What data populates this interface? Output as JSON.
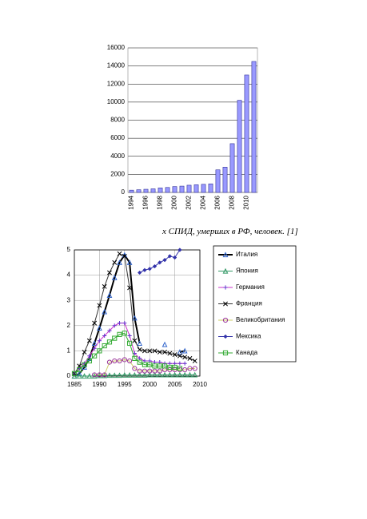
{
  "caption": "х СПИД, умерших в РФ, человек. [1]",
  "chart_data": [
    {
      "type": "bar",
      "categories": [
        "1994",
        null,
        "1996",
        null,
        "1998",
        null,
        "2000",
        null,
        "2002",
        null,
        "2004",
        null,
        "2006",
        null,
        "2008",
        null,
        "2010",
        null
      ],
      "values": [
        250,
        300,
        350,
        400,
        500,
        550,
        650,
        700,
        800,
        850,
        900,
        950,
        2500,
        2800,
        5400,
        10200,
        13000,
        14500
      ],
      "color": "#9999ff",
      "edge_color": "#333399",
      "ylim": [
        0,
        16000
      ],
      "yticks": [
        0,
        2000,
        4000,
        6000,
        8000,
        10000,
        12000,
        14000,
        16000
      ],
      "grid": true
    },
    {
      "type": "line",
      "x": [
        1985,
        1986,
        1987,
        1988,
        1989,
        1990,
        1991,
        1992,
        1993,
        1994,
        1995,
        1996,
        1997,
        1998,
        1999,
        2000,
        2001,
        2002,
        2003,
        2004,
        2005,
        2006,
        2007,
        2008,
        2009
      ],
      "xlim": [
        1985,
        2010
      ],
      "xticks": [
        1985,
        1990,
        1995,
        2000,
        2005,
        2010
      ],
      "ylim": [
        0,
        5
      ],
      "yticks": [
        0,
        1,
        2,
        3,
        4,
        5
      ],
      "grid": true,
      "legend": "right",
      "series": [
        {
          "name": "Италия",
          "color": "#000000",
          "marker_color": "#3366cc",
          "marker": "triangle",
          "width": 2,
          "values": [
            0,
            0.1,
            0.35,
            0.7,
            1.3,
            1.9,
            2.55,
            3.2,
            3.9,
            4.5,
            4.8,
            4.5,
            2.3,
            1.3,
            null,
            null,
            null,
            null,
            1.25,
            null,
            null,
            0.95,
            1.0,
            null,
            null
          ]
        },
        {
          "name": "Япония",
          "color": "#339966",
          "marker_color": "#339966",
          "marker": "triangle",
          "width": 1,
          "values": [
            0,
            0,
            0,
            0,
            0,
            0.02,
            0.02,
            0.03,
            0.03,
            0.03,
            0.04,
            0.04,
            0.04,
            0.04,
            0.04,
            0.05,
            0.05,
            0.05,
            0.05,
            0.05,
            0.05,
            0.05,
            0.05,
            0.05,
            0.05
          ]
        },
        {
          "name": "Германия",
          "color": "#cc33cc",
          "marker_color": "#6633cc",
          "marker": "star",
          "width": 1,
          "values": [
            0.1,
            0.3,
            0.5,
            0.8,
            1.1,
            1.4,
            1.6,
            1.8,
            2.0,
            2.1,
            2.1,
            1.6,
            0.9,
            0.7,
            0.6,
            0.6,
            0.55,
            0.55,
            0.5,
            0.5,
            0.5,
            0.5,
            0.5,
            null,
            null
          ]
        },
        {
          "name": "Франция",
          "color": "#333333",
          "marker_color": "#000000",
          "marker": "x",
          "width": 1,
          "values": [
            0.1,
            0.4,
            0.95,
            1.4,
            2.1,
            2.8,
            3.55,
            4.1,
            4.5,
            4.85,
            4.75,
            3.5,
            1.4,
            1.05,
            1.0,
            1.0,
            1.0,
            0.95,
            0.95,
            0.9,
            0.85,
            0.8,
            0.75,
            0.7,
            0.6
          ]
        },
        {
          "name": "Великобритания",
          "color": "#cccc66",
          "marker_color": "#993399",
          "marker": "circle",
          "width": 1,
          "values": [
            null,
            null,
            null,
            null,
            0.05,
            0.05,
            0.05,
            0.55,
            0.6,
            0.6,
            0.65,
            0.6,
            0.3,
            0.2,
            0.2,
            0.2,
            0.2,
            0.2,
            0.25,
            0.25,
            0.25,
            0.25,
            0.25,
            0.3,
            0.3
          ]
        },
        {
          "name": "Мексика",
          "color": "#3333aa",
          "marker_color": "#3333aa",
          "marker": "diamond",
          "width": 1,
          "values": [
            null,
            null,
            null,
            null,
            null,
            null,
            null,
            null,
            null,
            null,
            null,
            null,
            null,
            4.1,
            4.2,
            4.25,
            4.35,
            4.5,
            4.6,
            4.75,
            4.7,
            5.0,
            null,
            null,
            null
          ]
        },
        {
          "name": "Канада",
          "color": "#33aa33",
          "marker_color": "#33aa33",
          "marker": "square",
          "width": 1,
          "values": [
            0.1,
            0.25,
            0.45,
            0.6,
            0.8,
            1.0,
            1.2,
            1.35,
            1.5,
            1.65,
            1.7,
            1.3,
            0.7,
            0.55,
            0.45,
            0.45,
            0.4,
            0.4,
            0.4,
            0.35,
            0.35,
            0.3,
            null,
            null,
            null
          ]
        }
      ]
    }
  ]
}
